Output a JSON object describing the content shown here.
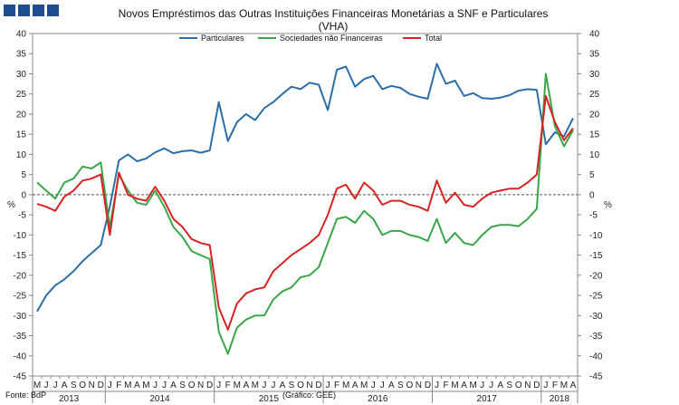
{
  "logo": {
    "blocks": 4,
    "color": "#1f4e8c"
  },
  "chart_data": {
    "type": "line",
    "title_line1": "Novos Empréstimos das Outras Instituições Financeiras Monetárias a SNF e Particulares",
    "title_line2": "(VHA)",
    "ylabel_left": "%",
    "ylabel_right": "%",
    "ylim": [
      -45,
      40
    ],
    "yticks": [
      40,
      35,
      30,
      25,
      20,
      15,
      10,
      5,
      0,
      -5,
      -10,
      -15,
      -20,
      -25,
      -30,
      -35,
      -40,
      -45
    ],
    "x_month_letters": [
      "M",
      "J",
      "J",
      "A",
      "S",
      "O",
      "N",
      "D",
      "J",
      "F",
      "M",
      "A",
      "M",
      "J",
      "J",
      "A",
      "S",
      "O",
      "N",
      "D",
      "J",
      "F",
      "M",
      "A",
      "M",
      "J",
      "J",
      "A",
      "S",
      "O",
      "N",
      "D",
      "J",
      "F",
      "M",
      "A",
      "M",
      "J",
      "J",
      "A",
      "S",
      "O",
      "N",
      "D",
      "J",
      "F",
      "M",
      "A",
      "M",
      "J",
      "J",
      "A",
      "S",
      "O",
      "N",
      "D",
      "J",
      "F",
      "M",
      "A"
    ],
    "years": [
      {
        "label": "2013",
        "start": 0,
        "end": 8
      },
      {
        "label": "2014",
        "start": 8,
        "end": 20
      },
      {
        "label": "2015",
        "start": 20,
        "end": 32
      },
      {
        "label": "2016",
        "start": 32,
        "end": 44
      },
      {
        "label": "2017",
        "start": 44,
        "end": 56
      },
      {
        "label": "2018",
        "start": 56,
        "end": 60
      }
    ],
    "series": [
      {
        "name": "Particulares",
        "color": "#2b6ea8",
        "values": [
          -29,
          -25,
          -22.5,
          -21,
          -19,
          -16.5,
          -14.5,
          -12.5,
          -3,
          8.5,
          10,
          8.3,
          9,
          10.5,
          11.5,
          10.3,
          10.8,
          11,
          10.4,
          11,
          23,
          13.3,
          18,
          20,
          18.5,
          21.5,
          23,
          25,
          26.8,
          26.2,
          27.8,
          27.3,
          21,
          31,
          31.8,
          26.8,
          28.7,
          29.5,
          26.2,
          27,
          26.5,
          25,
          24.3,
          23.8,
          32.5,
          27.5,
          28.3,
          24.5,
          25.2,
          24,
          23.8,
          24.1,
          24.7,
          25.8,
          26.2,
          26,
          12.5,
          15.5,
          14.5,
          19
        ]
      },
      {
        "name": "Sociedades não Financeiras",
        "color": "#3aa64a",
        "values": [
          3,
          1,
          -1,
          3,
          4,
          7,
          6.5,
          8,
          -8,
          5,
          1,
          -2,
          -2.5,
          1,
          -3,
          -8,
          -10.5,
          -14,
          -15,
          -16,
          -34,
          -39.5,
          -33,
          -31,
          -30,
          -30,
          -26,
          -24,
          -23,
          -20.5,
          -20,
          -18,
          -12,
          -6,
          -5.5,
          -7,
          -4,
          -6,
          -10,
          -9,
          -9,
          -10,
          -10.5,
          -11.5,
          -6,
          -12,
          -9.5,
          -12,
          -12.5,
          -10,
          -8,
          -7.5,
          -7.5,
          -7.8,
          -6,
          -3.5,
          30,
          17,
          12,
          16
        ]
      },
      {
        "name": "Total",
        "color": "#d62424",
        "values": [
          -2.3,
          -3,
          -4,
          -0.5,
          1,
          3.5,
          4,
          5,
          -10,
          5.5,
          0,
          -1,
          -1.5,
          2,
          -1.5,
          -6,
          -8,
          -11,
          -12,
          -12.5,
          -28,
          -33.5,
          -27,
          -24.5,
          -23.5,
          -23,
          -19,
          -17,
          -15,
          -13.5,
          -12,
          -10,
          -5,
          1.5,
          2.5,
          -1,
          3,
          1,
          -2.5,
          -1.5,
          -1.5,
          -2.5,
          -3,
          -4,
          3.5,
          -2,
          0.5,
          -2.5,
          -3,
          -1,
          0.5,
          1,
          1.5,
          1.5,
          3,
          5,
          24.5,
          18,
          13.5,
          16.5
        ]
      }
    ],
    "source": "Fonte: BdP",
    "credit": "(Gráfico: GEE)"
  }
}
